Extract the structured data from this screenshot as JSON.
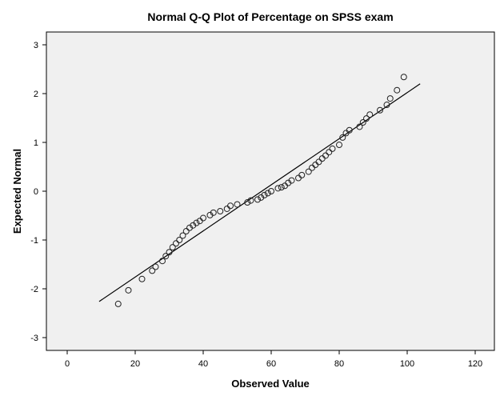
{
  "chart_data": {
    "type": "scatter",
    "title": "Normal Q-Q Plot of Percentage on SPSS exam",
    "xlabel": "Observed Value",
    "ylabel": "Expected Normal",
    "xlim": [
      -10,
      130
    ],
    "ylim": [
      -3.3,
      3.2
    ],
    "xticks": [
      "0",
      "20",
      "40",
      "60",
      "80",
      "100",
      "120"
    ],
    "yticks": [
      "-3",
      "-2",
      "-1",
      "0",
      "1",
      "2",
      "3"
    ],
    "grid": false,
    "plot_background": "#f0f0f0",
    "marker": "open-circle",
    "reference_line": {
      "x": [
        9.4,
        103.8
      ],
      "y": [
        -2.26,
        2.2
      ]
    },
    "points": [
      [
        15,
        -2.31
      ],
      [
        18,
        -2.03
      ],
      [
        22,
        -1.8
      ],
      [
        25,
        -1.63
      ],
      [
        26,
        -1.55
      ],
      [
        28,
        -1.43
      ],
      [
        29,
        -1.33
      ],
      [
        30,
        -1.25
      ],
      [
        31,
        -1.15
      ],
      [
        32,
        -1.07
      ],
      [
        33,
        -1.0
      ],
      [
        34,
        -0.91
      ],
      [
        35,
        -0.82
      ],
      [
        36,
        -0.75
      ],
      [
        37,
        -0.7
      ],
      [
        38,
        -0.65
      ],
      [
        39,
        -0.61
      ],
      [
        40,
        -0.55
      ],
      [
        42,
        -0.49
      ],
      [
        43,
        -0.44
      ],
      [
        45,
        -0.41
      ],
      [
        47,
        -0.36
      ],
      [
        48,
        -0.3
      ],
      [
        50,
        -0.27
      ],
      [
        53,
        -0.23
      ],
      [
        54,
        -0.19
      ],
      [
        56,
        -0.17
      ],
      [
        57,
        -0.13
      ],
      [
        58,
        -0.08
      ],
      [
        59,
        -0.04
      ],
      [
        60,
        0.0
      ],
      [
        62,
        0.06
      ],
      [
        63,
        0.08
      ],
      [
        64,
        0.11
      ],
      [
        65,
        0.17
      ],
      [
        66,
        0.22
      ],
      [
        68,
        0.27
      ],
      [
        69,
        0.33
      ],
      [
        71,
        0.4
      ],
      [
        72,
        0.48
      ],
      [
        73,
        0.54
      ],
      [
        74,
        0.6
      ],
      [
        75,
        0.67
      ],
      [
        76,
        0.73
      ],
      [
        77,
        0.8
      ],
      [
        78,
        0.87
      ],
      [
        80,
        0.95
      ],
      [
        81,
        1.1
      ],
      [
        82,
        1.19
      ],
      [
        83,
        1.25
      ],
      [
        86,
        1.32
      ],
      [
        87,
        1.41
      ],
      [
        88,
        1.49
      ],
      [
        89,
        1.57
      ],
      [
        92,
        1.66
      ],
      [
        94,
        1.77
      ],
      [
        95,
        1.9
      ],
      [
        97,
        2.07
      ],
      [
        99,
        2.34
      ]
    ]
  }
}
